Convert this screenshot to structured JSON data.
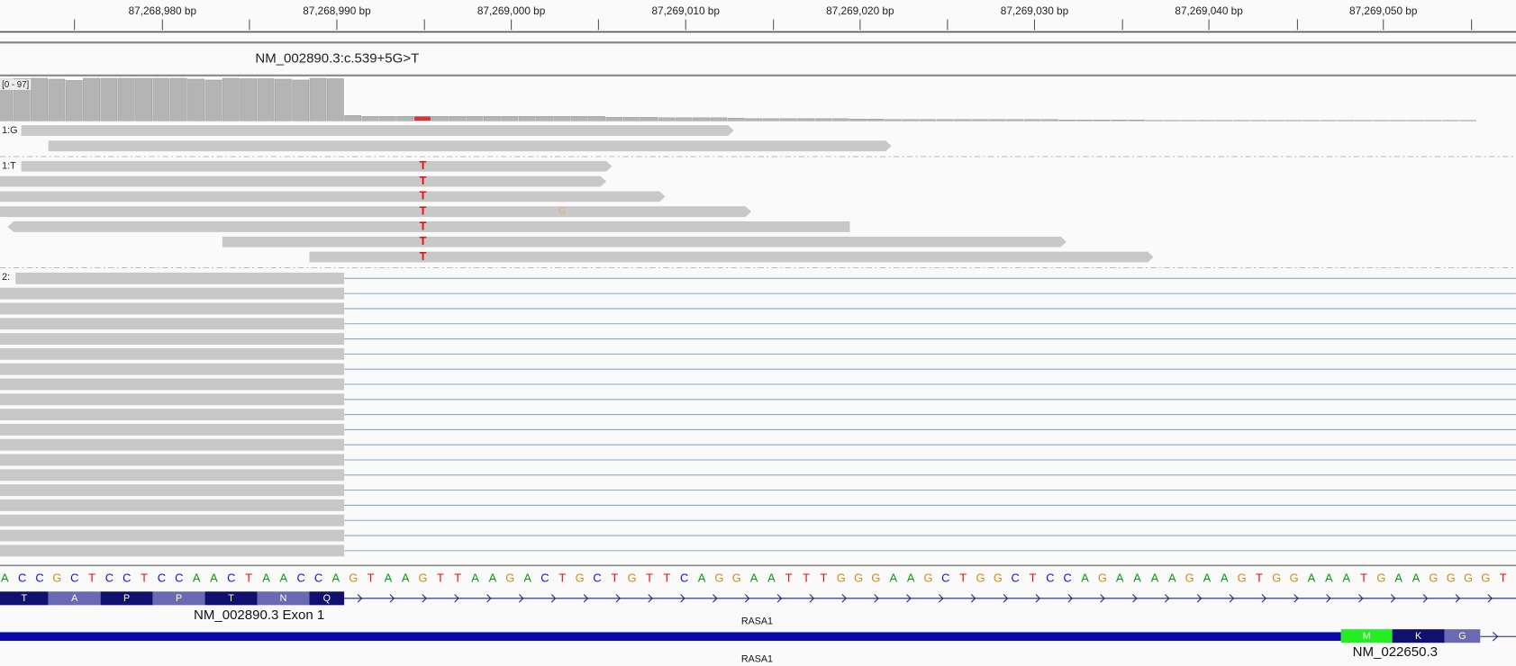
{
  "ruler": {
    "labels": [
      "87,268,980 bp",
      "87,268,990 bp",
      "87,269,000 bp",
      "87,269,010 bp",
      "87,269,020 bp",
      "87,269,030 bp",
      "87,269,040 bp",
      "87,269,050 bp"
    ]
  },
  "variant_label": "NM_002890.3:c.539+5G>T",
  "coverage": {
    "range_label": "[0 - 97]",
    "max": 97,
    "values": [
      95,
      96,
      97,
      95,
      92,
      97,
      97,
      97,
      97,
      97,
      97,
      95,
      93,
      97,
      96,
      96,
      95,
      93,
      97,
      96,
      12,
      10,
      10,
      10,
      10,
      10,
      10,
      10,
      10,
      10,
      10,
      10,
      10,
      10,
      10,
      8,
      8,
      8,
      7,
      7,
      7,
      7,
      6,
      5,
      5,
      5,
      5,
      5,
      5,
      4,
      4,
      3,
      3,
      3,
      3,
      3,
      3,
      3,
      3,
      3,
      3,
      2,
      2,
      2,
      2,
      2,
      1,
      1,
      1,
      1,
      1,
      1,
      1,
      1,
      1,
      1,
      1,
      1,
      1,
      1,
      1,
      1,
      1,
      1,
      1
    ]
  },
  "groups": [
    {
      "label": "1:G"
    },
    {
      "label": "1:T",
      "mismatches": [
        "T",
        "T",
        "T",
        "T",
        "T",
        "T",
        "T",
        "G"
      ]
    },
    {
      "label": "2:"
    }
  ],
  "sequence": [
    "A",
    "C",
    "C",
    "G",
    "C",
    "T",
    "C",
    "C",
    "T",
    "C",
    "C",
    "A",
    "A",
    "C",
    "T",
    "A",
    "A",
    "C",
    "C",
    "A",
    "G",
    "T",
    "A",
    "A",
    "G",
    "T",
    "T",
    "A",
    "A",
    "G",
    "A",
    "C",
    "T",
    "G",
    "C",
    "T",
    "G",
    "T",
    "T",
    "C",
    "A",
    "G",
    "G",
    "A",
    "A",
    "T",
    "T",
    "T",
    "G",
    "G",
    "G",
    "A",
    "A",
    "G",
    "C",
    "T",
    "G",
    "G",
    "C",
    "T",
    "C",
    "C",
    "A",
    "G",
    "A",
    "A",
    "A",
    "A",
    "G",
    "A",
    "A",
    "G",
    "T",
    "G",
    "G",
    "A",
    "A",
    "A",
    "T",
    "G",
    "A",
    "A",
    "G",
    "G",
    "G",
    "G",
    "T"
  ],
  "transcripts": [
    {
      "amino_acids": [
        "T",
        "A",
        "P",
        "P",
        "T",
        "N",
        "Q"
      ],
      "label": "NM_002890.3  Exon 1",
      "gene": "RASA1"
    },
    {
      "amino_acids": [
        "M",
        "K",
        "G"
      ],
      "label": "NM_022650.3",
      "gene": "RASA1"
    }
  ]
}
